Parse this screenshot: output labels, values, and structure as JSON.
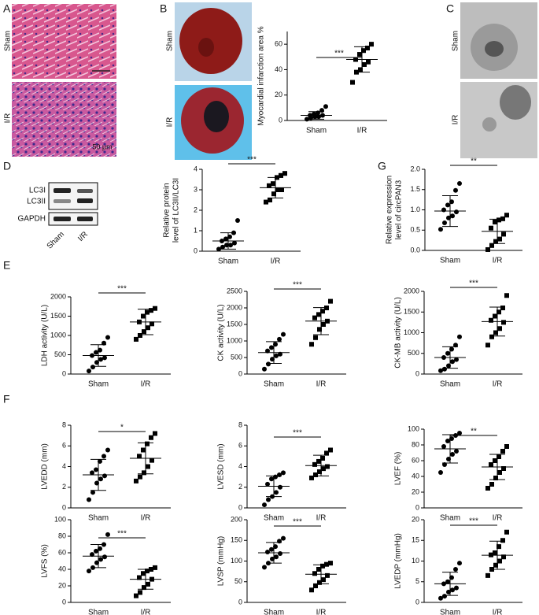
{
  "panel_letters": [
    "A",
    "B",
    "C",
    "D",
    "E",
    "F",
    "G"
  ],
  "image_panels": {
    "A": {
      "row_labels": [
        "Sham",
        "I/R"
      ],
      "scale_bar": "50 μm"
    },
    "B": {
      "row_labels": [
        "Sham",
        "I/R"
      ]
    },
    "C": {
      "row_labels": [
        "Sham",
        "I/R"
      ]
    },
    "D": {
      "bands": [
        "LC3I",
        "LC3II",
        "GAPDH"
      ],
      "lanes": [
        "Sham",
        "I/R"
      ]
    }
  },
  "chart_data": [
    {
      "type": "dot",
      "ylabel": [
        "Myocardial infarction area %"
      ],
      "categories": [
        "Sham",
        "I/R"
      ],
      "markers": [
        "circle",
        "square"
      ],
      "values": [
        [
          1,
          2,
          3,
          3,
          4,
          4,
          5,
          6,
          8,
          11
        ],
        [
          30,
          38,
          40,
          44,
          46,
          48,
          52,
          55,
          57,
          60
        ]
      ],
      "means": [
        4,
        48
      ],
      "sds": [
        3,
        10
      ],
      "ylim": [
        0,
        70
      ],
      "yticks": [
        0,
        20,
        40,
        60
      ],
      "annotation": "***"
    },
    {
      "type": "dot",
      "ylabel": [
        "Relative protein",
        "level of LC3II/LC3I"
      ],
      "categories": [
        "Sham",
        "I/R"
      ],
      "markers": [
        "circle",
        "square"
      ],
      "values": [
        [
          0.1,
          0.2,
          0.3,
          0.3,
          0.4,
          0.5,
          0.6,
          0.7,
          0.9,
          1.5
        ],
        [
          2.4,
          2.5,
          2.8,
          3.0,
          3.0,
          3.2,
          3.3,
          3.6,
          3.7,
          3.8
        ]
      ],
      "means": [
        0.5,
        3.1
      ],
      "sds": [
        0.4,
        0.5
      ],
      "ylim": [
        0,
        4
      ],
      "yticks": [
        0,
        1,
        2,
        3,
        4
      ],
      "annotation": "***"
    },
    {
      "type": "dot",
      "ylabel": [
        "Relative expression",
        "level of circPAN3"
      ],
      "categories": [
        "Sham",
        "I/R"
      ],
      "markers": [
        "circle",
        "square"
      ],
      "values": [
        [
          0.52,
          0.68,
          0.8,
          0.85,
          0.95,
          1.0,
          1.12,
          1.2,
          1.48,
          1.65
        ],
        [
          0.02,
          0.12,
          0.22,
          0.28,
          0.4,
          0.55,
          0.7,
          0.75,
          0.78,
          0.87
        ]
      ],
      "means": [
        0.97,
        0.47
      ],
      "sds": [
        0.38,
        0.3
      ],
      "ylim": [
        0,
        2
      ],
      "yticks": [
        {
          "value": 0,
          "label": "0.0"
        },
        {
          "value": 0.5,
          "label": "0.5"
        },
        {
          "value": 1,
          "label": "1.0"
        },
        {
          "value": 1.5,
          "label": "1.5"
        },
        {
          "value": 2,
          "label": "2.0"
        }
      ],
      "annotation": "**"
    },
    {
      "type": "dot",
      "ylabel": [
        "LDH activity (U/L)"
      ],
      "categories": [
        "Sham",
        "I/R"
      ],
      "markers": [
        "circle",
        "square"
      ],
      "values": [
        [
          80,
          180,
          300,
          380,
          420,
          480,
          560,
          620,
          800,
          950
        ],
        [
          900,
          1000,
          1100,
          1200,
          1300,
          1350,
          1500,
          1600,
          1650,
          1700
        ]
      ],
      "means": [
        480,
        1350
      ],
      "sds": [
        280,
        330
      ],
      "ylim": [
        0,
        2000
      ],
      "yticks": [
        0,
        500,
        1000,
        1500,
        2000
      ],
      "annotation": "***"
    },
    {
      "type": "dot",
      "ylabel": [
        "CK activity (U/L)"
      ],
      "categories": [
        "Sham",
        "I/R"
      ],
      "markers": [
        "circle",
        "square"
      ],
      "values": [
        [
          150,
          300,
          450,
          550,
          600,
          700,
          800,
          900,
          1050,
          1200
        ],
        [
          900,
          1100,
          1350,
          1500,
          1600,
          1700,
          1800,
          1900,
          2000,
          2200
        ]
      ],
      "means": [
        650,
        1600
      ],
      "sds": [
        330,
        410
      ],
      "ylim": [
        0,
        2500
      ],
      "yticks": [
        0,
        500,
        1000,
        1500,
        2000,
        2500
      ],
      "annotation": "***"
    },
    {
      "type": "dot",
      "ylabel": [
        "CK-MB activity (U/L)"
      ],
      "categories": [
        "Sham",
        "I/R"
      ],
      "markers": [
        "circle",
        "square"
      ],
      "values": [
        [
          80,
          120,
          200,
          300,
          350,
          400,
          500,
          600,
          700,
          900
        ],
        [
          700,
          900,
          1000,
          1100,
          1250,
          1300,
          1400,
          1500,
          1600,
          1900
        ]
      ],
      "means": [
        400,
        1270
      ],
      "sds": [
        260,
        350
      ],
      "ylim": [
        0,
        2000
      ],
      "yticks": [
        0,
        500,
        1000,
        1500,
        2000
      ],
      "annotation": "***"
    },
    {
      "type": "dot",
      "ylabel": [
        "LVEDD (mm)"
      ],
      "categories": [
        "Sham",
        "I/R"
      ],
      "markers": [
        "circle",
        "square"
      ],
      "values": [
        [
          0.8,
          1.5,
          2.4,
          2.8,
          3.1,
          3.4,
          3.7,
          4.5,
          5.0,
          5.6
        ],
        [
          2.6,
          3.0,
          3.4,
          4.0,
          4.6,
          5.0,
          5.6,
          6.2,
          6.8,
          7.2
        ]
      ],
      "means": [
        3.2,
        4.8
      ],
      "sds": [
        1.5,
        1.5
      ],
      "ylim": [
        0,
        8
      ],
      "yticks": [
        0,
        2,
        4,
        6,
        8
      ],
      "annotation": "*"
    },
    {
      "type": "dot",
      "ylabel": [
        "LVESD (mm)"
      ],
      "categories": [
        "Sham",
        "I/R"
      ],
      "markers": [
        "circle",
        "square"
      ],
      "values": [
        [
          0.3,
          0.8,
          1.1,
          1.5,
          2.0,
          2.3,
          2.8,
          3.0,
          3.2,
          3.4
        ],
        [
          2.9,
          3.2,
          3.5,
          3.8,
          4.0,
          4.2,
          4.5,
          4.8,
          5.3,
          5.6
        ]
      ],
      "means": [
        2.1,
        4.1
      ],
      "sds": [
        1.0,
        1.0
      ],
      "ylim": [
        0,
        8
      ],
      "yticks": [
        0,
        2,
        4,
        6,
        8
      ],
      "annotation": "***"
    },
    {
      "type": "dot",
      "ylabel": [
        "LVEF (%)"
      ],
      "categories": [
        "Sham",
        "I/R"
      ],
      "markers": [
        "circle",
        "square"
      ],
      "values": [
        [
          45,
          55,
          62,
          68,
          72,
          78,
          85,
          88,
          92,
          95
        ],
        [
          25,
          30,
          38,
          45,
          50,
          55,
          60,
          65,
          72,
          78
        ]
      ],
      "means": [
        75,
        52
      ],
      "sds": [
        18,
        16
      ],
      "ylim": [
        0,
        100
      ],
      "yticks": [
        0,
        20,
        40,
        60,
        80,
        100
      ],
      "annotation": "**"
    },
    {
      "type": "dot",
      "ylabel": [
        "LVFS (%)"
      ],
      "categories": [
        "Sham",
        "I/R"
      ],
      "markers": [
        "circle",
        "square"
      ],
      "values": [
        [
          38,
          42,
          48,
          52,
          55,
          58,
          62,
          65,
          70,
          82
        ],
        [
          8,
          12,
          18,
          22,
          28,
          30,
          35,
          38,
          40,
          42
        ]
      ],
      "means": [
        56,
        28
      ],
      "sds": [
        14,
        12
      ],
      "ylim": [
        0,
        100
      ],
      "yticks": [
        0,
        20,
        40,
        60,
        80,
        100
      ],
      "annotation": "***"
    },
    {
      "type": "dot",
      "ylabel": [
        "LVSP (mmHg)"
      ],
      "categories": [
        "Sham",
        "I/R"
      ],
      "markers": [
        "circle",
        "square"
      ],
      "values": [
        [
          85,
          95,
          105,
          110,
          118,
          122,
          128,
          135,
          148,
          155
        ],
        [
          30,
          40,
          48,
          55,
          65,
          70,
          80,
          88,
          92,
          95
        ]
      ],
      "means": [
        120,
        68
      ],
      "sds": [
        25,
        23
      ],
      "ylim": [
        0,
        200
      ],
      "yticks": [
        0,
        50,
        100,
        150,
        200
      ],
      "annotation": "***"
    },
    {
      "type": "dot",
      "ylabel": [
        "LVEDP (mmHg)"
      ],
      "categories": [
        "Sham",
        "I/R"
      ],
      "markers": [
        "circle",
        "square"
      ],
      "values": [
        [
          1,
          1.5,
          2.5,
          3,
          3.5,
          4.5,
          5,
          6,
          8,
          9.5
        ],
        [
          6.5,
          8,
          9,
          10,
          11,
          11.5,
          12,
          13.5,
          15,
          17
        ]
      ],
      "means": [
        4.5,
        11.4
      ],
      "sds": [
        2.8,
        3.4
      ],
      "ylim": [
        0,
        20
      ],
      "yticks": [
        0,
        5,
        10,
        15,
        20
      ],
      "annotation": "***"
    }
  ]
}
